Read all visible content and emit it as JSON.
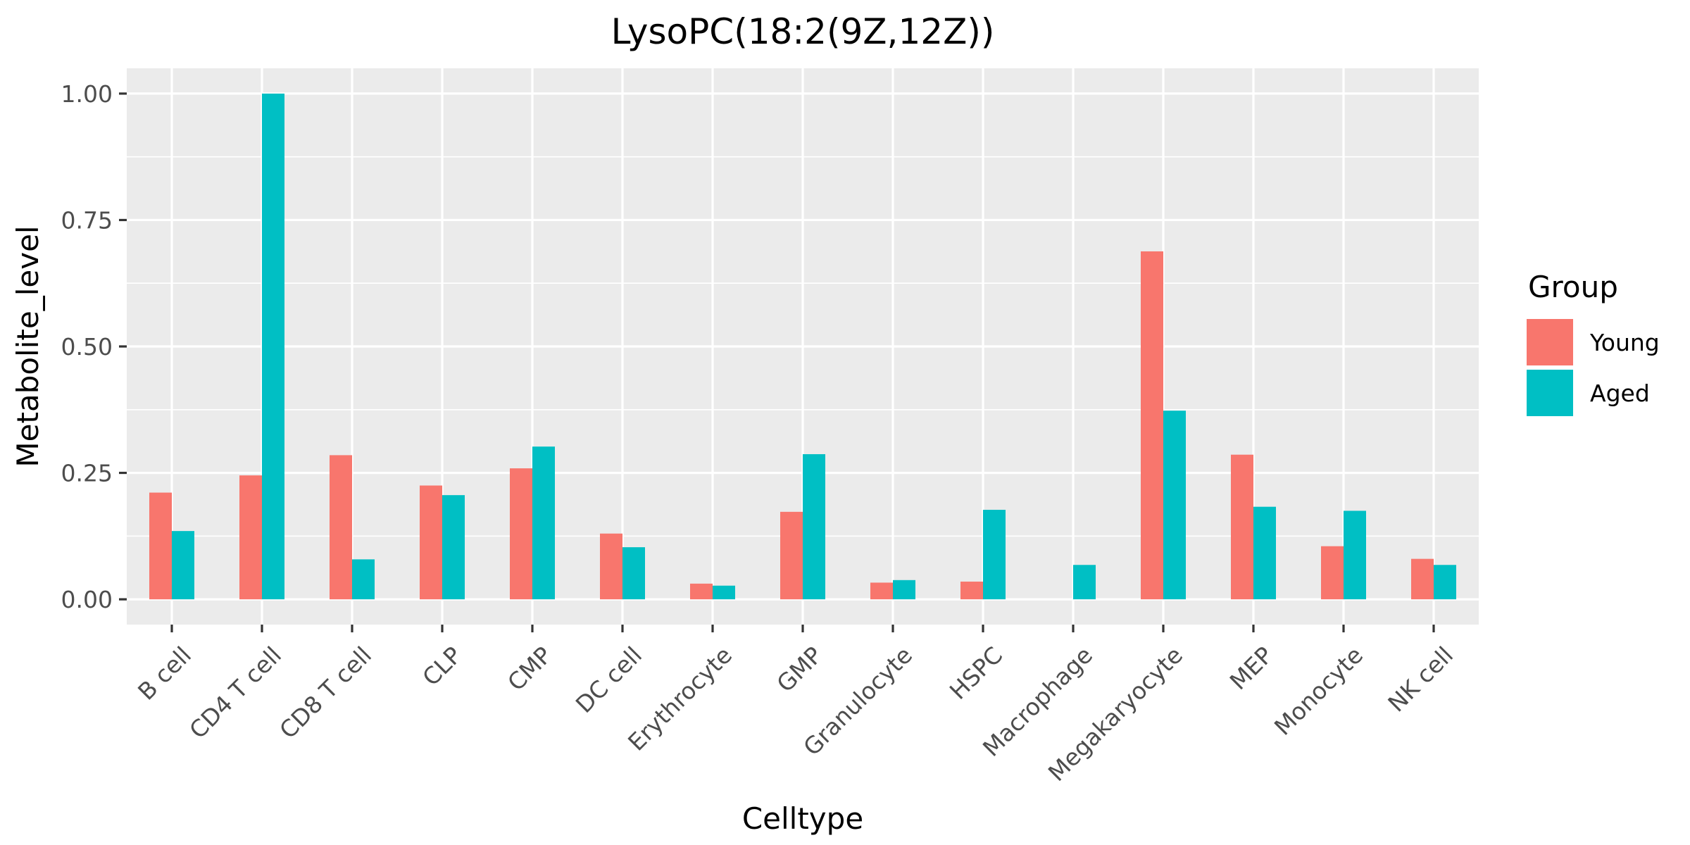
{
  "chart_data": {
    "type": "bar",
    "title": "LysoPC(18:2(9Z,12Z))",
    "xlabel": "Celltype",
    "ylabel": "Metabolite_level",
    "categories": [
      "B cell",
      "CD4 T cell",
      "CD8 T cell",
      "CLP",
      "CMP",
      "DC cell",
      "Erythrocyte",
      "GMP",
      "Granulocyte",
      "HSPC",
      "Macrophage",
      "Megakaryocyte",
      "MEP",
      "Monocyte",
      "NK cell"
    ],
    "series": [
      {
        "name": "Young",
        "color": "#F8766D",
        "values": [
          0.211,
          0.245,
          0.285,
          0.225,
          0.259,
          0.13,
          0.031,
          0.173,
          0.033,
          0.035,
          null,
          0.688,
          0.286,
          0.105,
          0.08
        ]
      },
      {
        "name": "Aged",
        "color": "#00BFC4",
        "values": [
          0.135,
          1.0,
          0.079,
          0.206,
          0.302,
          0.103,
          0.027,
          0.287,
          0.038,
          0.177,
          0.068,
          0.373,
          0.183,
          0.175,
          0.068
        ]
      }
    ],
    "ylim": [
      -0.05,
      1.05
    ],
    "yticks": [
      0.0,
      0.25,
      0.5,
      0.75,
      1.0
    ],
    "ytick_labels": [
      "0.00",
      "0.25",
      "0.50",
      "0.75",
      "1.00"
    ],
    "grid": true,
    "panel_background": "#EBEBEB",
    "legend": {
      "title": "Group",
      "placement": "right"
    }
  }
}
